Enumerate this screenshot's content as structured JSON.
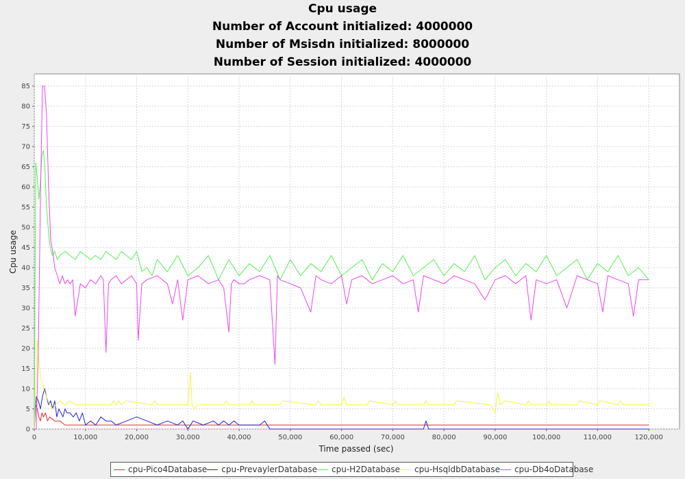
{
  "chart_data": {
    "type": "line",
    "title": "Cpu usage",
    "subtitles": [
      "Number of Account initialized: 4000000",
      "Number of Msisdn initialized: 8000000",
      "Number of Session initialized: 4000000"
    ],
    "xlabel": "Time passed (sec)",
    "ylabel": "Cpu usage",
    "xlim": [
      0,
      126000
    ],
    "ylim": [
      0,
      88
    ],
    "xticks": [
      0,
      10000,
      20000,
      30000,
      40000,
      50000,
      60000,
      70000,
      80000,
      90000,
      100000,
      110000,
      120000
    ],
    "xtick_labels": [
      "0",
      "10,000",
      "20,000",
      "30,000",
      "40,000",
      "50,000",
      "60,000",
      "70,000",
      "80,000",
      "90,000",
      "100,000",
      "110,000",
      "120,000"
    ],
    "yticks": [
      0,
      5,
      10,
      15,
      20,
      25,
      30,
      35,
      40,
      45,
      50,
      55,
      60,
      65,
      70,
      75,
      80,
      85
    ],
    "grid": true,
    "legend_position": "bottom",
    "series": [
      {
        "name": "cpu-Pico4Database",
        "color": "#e0282a",
        "x": [
          0,
          300,
          600,
          900,
          1200,
          1500,
          1800,
          2200,
          2600,
          3000,
          4000,
          5000,
          6000,
          7000,
          10000,
          20000,
          40000,
          60000,
          80000,
          100000,
          120000
        ],
        "y": [
          0,
          6,
          5,
          3,
          2,
          4,
          3,
          4,
          2,
          3,
          2,
          2,
          1,
          1,
          1,
          1,
          1,
          1,
          1,
          1,
          1
        ]
      },
      {
        "name": "cpu-PrevaylerDatabase",
        "color": "#2020e0",
        "x": [
          0,
          400,
          800,
          1200,
          1600,
          2000,
          2400,
          2800,
          3200,
          3600,
          4000,
          4400,
          4800,
          5200,
          5600,
          6000,
          6400,
          7000,
          7600,
          8200,
          8800,
          9400,
          10000,
          11000,
          12000,
          13000,
          14000,
          15000,
          16000,
          18000,
          20000,
          22000,
          24000,
          26000,
          28000,
          29000,
          30000,
          31000,
          33000,
          35000,
          36000,
          37000,
          38000,
          39000,
          40000,
          44000,
          45000,
          46000,
          60000,
          76000,
          76500,
          77000,
          90000,
          120000
        ],
        "y": [
          0,
          8,
          7,
          5,
          8,
          10,
          8,
          6,
          7,
          5,
          7,
          3,
          5,
          4,
          3,
          5,
          4,
          4,
          3,
          4,
          2,
          4,
          1,
          2,
          1,
          3,
          2,
          2,
          1,
          2,
          3,
          2,
          1,
          2,
          1,
          2,
          0,
          2,
          1,
          2,
          1,
          2,
          1,
          2,
          1,
          1,
          2,
          0,
          0,
          0,
          2,
          0,
          0,
          0
        ]
      },
      {
        "name": "cpu-H2Database",
        "color": "#55ee55",
        "x": [
          0,
          300,
          600,
          900,
          1200,
          1500,
          1800,
          2100,
          2400,
          2700,
          3000,
          3300,
          3600,
          4000,
          4500,
          5000,
          6000,
          7000,
          8000,
          9000,
          10000,
          11000,
          12000,
          13000,
          14000,
          15000,
          16000,
          17000,
          18000,
          19000,
          20000,
          21000,
          22000,
          23000,
          24000,
          26000,
          28000,
          30000,
          32000,
          34000,
          36000,
          38000,
          40000,
          42000,
          44000,
          46000,
          48000,
          50000,
          52000,
          54000,
          56000,
          58000,
          60000,
          62000,
          64000,
          66000,
          68000,
          70000,
          72000,
          74000,
          76000,
          78000,
          80000,
          82000,
          84000,
          86000,
          88000,
          90000,
          92000,
          94000,
          96000,
          98000,
          100000,
          102000,
          104000,
          106000,
          108000,
          110000,
          112000,
          114000,
          116000,
          118000,
          120000
        ],
        "y": [
          0,
          66,
          62,
          57,
          61,
          68,
          69,
          64,
          55,
          50,
          46,
          44,
          43,
          44,
          42,
          43,
          44,
          43,
          42,
          44,
          43,
          42,
          43,
          42,
          44,
          43,
          42,
          44,
          43,
          42,
          44,
          39,
          40,
          38,
          42,
          39,
          43,
          38,
          40,
          43,
          37,
          42,
          38,
          41,
          39,
          43,
          37,
          42,
          38,
          41,
          39,
          43,
          38,
          40,
          42,
          37,
          41,
          39,
          43,
          38,
          40,
          42,
          38,
          41,
          39,
          43,
          37,
          40,
          42,
          38,
          41,
          39,
          43,
          38,
          40,
          42,
          37,
          41,
          39,
          43,
          38,
          40,
          37
        ]
      },
      {
        "name": "cpu-HsqldbDatabase",
        "color": "#f5f540",
        "x": [
          0,
          600,
          1200,
          1800,
          2400,
          3000,
          3600,
          4200,
          5000,
          6000,
          7000,
          8000,
          15000,
          15500,
          16000,
          16500,
          17000,
          18000,
          23000,
          23500,
          24000,
          25000,
          30000,
          30500,
          30800,
          31200,
          32000,
          37000,
          37500,
          38000,
          42000,
          42500,
          43000,
          48000,
          48500,
          55000,
          55500,
          56000,
          60000,
          60500,
          61000,
          62000,
          65000,
          65500,
          70000,
          70500,
          71000,
          76000,
          76500,
          77000,
          78000,
          82000,
          82500,
          89000,
          90000,
          90500,
          91000,
          92000,
          96000,
          96500,
          97000,
          100000,
          100500,
          101000,
          106000,
          106500,
          110000,
          110500,
          114000,
          114500,
          115000,
          120000
        ],
        "y": [
          0,
          22,
          13,
          10,
          8,
          6,
          5,
          6,
          7,
          6,
          7,
          6,
          6,
          7,
          6,
          7,
          6,
          7,
          6,
          7,
          6,
          6,
          6,
          14,
          6,
          5,
          6,
          6,
          7,
          6,
          6,
          7,
          6,
          6,
          7,
          6,
          7,
          6,
          6,
          8,
          6,
          6,
          6,
          7,
          6,
          7,
          6,
          6,
          7,
          6,
          6,
          6,
          7,
          6,
          4,
          9,
          6,
          7,
          6,
          7,
          6,
          6,
          7,
          6,
          6,
          7,
          6,
          7,
          6,
          7,
          6,
          6
        ]
      },
      {
        "name": "cpu-Db4oDatabase",
        "color": "#ee44ee",
        "x": [
          0,
          400,
          800,
          1200,
          1600,
          2000,
          2400,
          2800,
          3200,
          3600,
          4000,
          4500,
          5000,
          5500,
          6000,
          6500,
          7000,
          7500,
          8000,
          9000,
          10000,
          11000,
          12000,
          13000,
          13500,
          14000,
          14500,
          15000,
          16000,
          17000,
          18000,
          19000,
          20000,
          20300,
          21000,
          22000,
          24000,
          26000,
          27000,
          28000,
          29000,
          30000,
          32000,
          34000,
          36000,
          37000,
          38000,
          38500,
          39000,
          40000,
          41000,
          42000,
          44000,
          46000,
          47000,
          47500,
          48000,
          50000,
          52000,
          54000,
          55000,
          56000,
          58000,
          60000,
          61000,
          62000,
          64000,
          66000,
          68000,
          70000,
          72000,
          74000,
          75000,
          76000,
          78000,
          80000,
          82000,
          84000,
          86000,
          88000,
          90000,
          92000,
          94000,
          96000,
          97000,
          98000,
          100000,
          102000,
          104000,
          106000,
          108000,
          110000,
          111000,
          112000,
          114000,
          116000,
          117000,
          118000,
          120000
        ],
        "y": [
          0,
          0,
          20,
          57,
          85,
          85,
          78,
          60,
          47,
          44,
          40,
          38,
          36,
          38,
          36,
          37,
          36,
          37,
          28,
          36,
          35,
          37,
          36,
          38,
          37,
          19,
          36,
          37,
          38,
          36,
          37,
          38,
          36,
          22,
          36,
          37,
          38,
          36,
          31,
          37,
          27,
          37,
          38,
          36,
          37,
          35,
          24,
          36,
          37,
          36,
          36,
          37,
          38,
          37,
          16,
          38,
          37,
          36,
          35,
          29,
          38,
          37,
          36,
          38,
          31,
          37,
          38,
          36,
          37,
          38,
          36,
          37,
          29,
          38,
          37,
          36,
          38,
          37,
          36,
          32,
          37,
          38,
          36,
          38,
          27,
          37,
          36,
          37,
          30,
          38,
          37,
          36,
          29,
          38,
          37,
          36,
          28,
          37,
          37
        ]
      }
    ]
  }
}
